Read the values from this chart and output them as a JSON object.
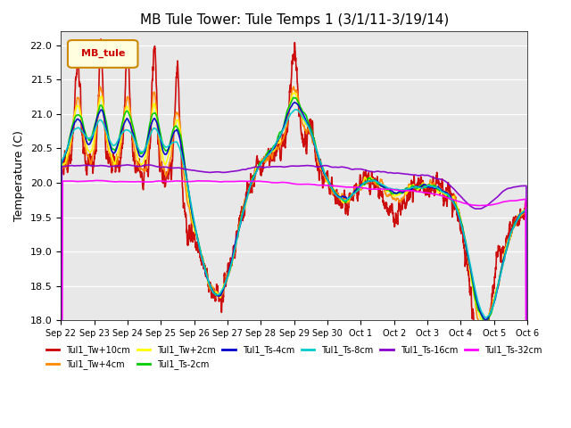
{
  "title": "MB Tule Tower: Tule Temps 1 (3/1/11-3/19/14)",
  "ylabel": "Temperature (C)",
  "ylim": [
    18.0,
    22.2
  ],
  "yticks": [
    18.0,
    18.5,
    19.0,
    19.5,
    20.0,
    20.5,
    21.0,
    21.5,
    22.0
  ],
  "legend_label": "MB_tule",
  "series": [
    {
      "name": "Tul1_Tw+10cm",
      "color": "#cc0000",
      "lw": 1.2
    },
    {
      "name": "Tul1_Tw+4cm",
      "color": "#ff8800",
      "lw": 1.2
    },
    {
      "name": "Tul1_Tw+2cm",
      "color": "#ffff00",
      "lw": 1.2
    },
    {
      "name": "Tul1_Ts-2cm",
      "color": "#00cc00",
      "lw": 1.2
    },
    {
      "name": "Tul1_Ts-4cm",
      "color": "#0000cc",
      "lw": 1.2
    },
    {
      "name": "Tul1_Ts-8cm",
      "color": "#00cccc",
      "lw": 1.2
    },
    {
      "name": "Tul1_Ts-16cm",
      "color": "#8800cc",
      "lw": 1.2
    },
    {
      "name": "Tul1_Ts-32cm",
      "color": "#ff00ff",
      "lw": 1.2
    }
  ],
  "plot_bg_color": "#e8e8e8",
  "xtick_labels": [
    "Sep 22",
    "Sep 23",
    "Sep 24",
    "Sep 25",
    "Sep 26",
    "Sep 27",
    "Sep 28",
    "Sep 29",
    "Sep 30",
    "Oct 1",
    "Oct 2",
    "Oct 3",
    "Oct 4",
    "Oct 5",
    "Oct 6"
  ]
}
